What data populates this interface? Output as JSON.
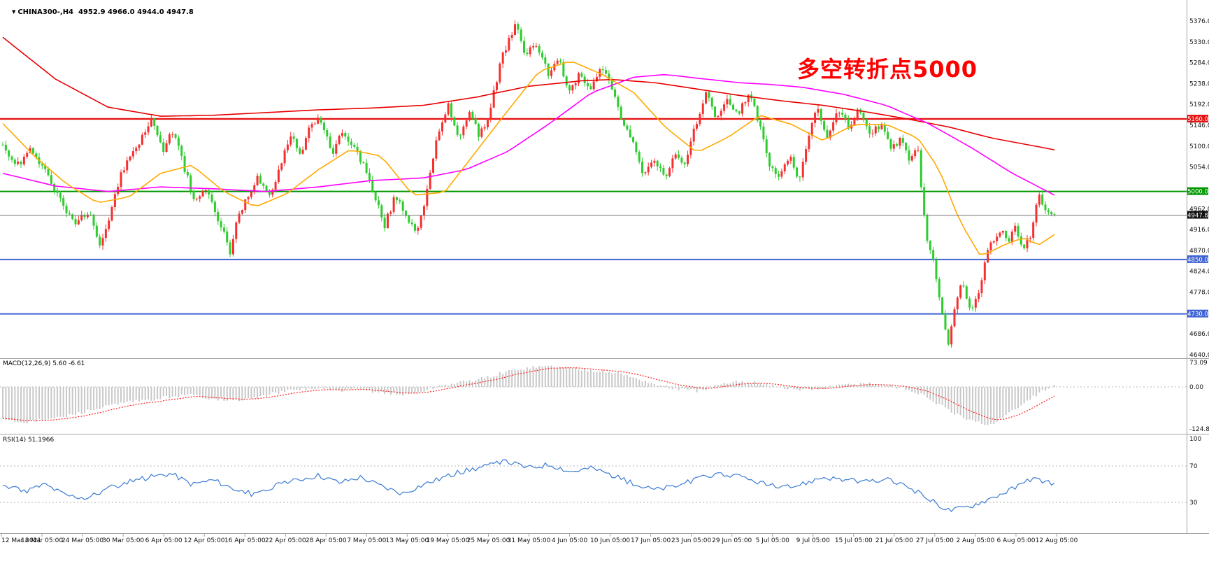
{
  "header": {
    "collapse_icon": "▼",
    "symbol_info": "CHINA300-,H4  4952.9 4966.0 4944.0 4947.8"
  },
  "annotation": {
    "text": "多空转折点5000",
    "color": "#ff0000"
  },
  "indicators": {
    "macd_label": "MACD(12,26,9) 5.60 -6.61",
    "rsi_label": "RSI(14) 51.1966"
  },
  "chart_data": {
    "type": "candlestick",
    "symbol": "CHINA300-",
    "timeframe": "H4",
    "title": "CHINA300-,H4",
    "ohlc_current": {
      "open": 4952.9,
      "high": 4966.0,
      "low": 4944.0,
      "close": 4947.8
    },
    "num_candles": 348,
    "ylim": [
      4640,
      5376
    ],
    "y_ticks": [
      5376.0,
      5330.0,
      5284.0,
      5238.0,
      5192.0,
      5146.0,
      5100.0,
      5054.0,
      4962.0,
      4916.0,
      4870.0,
      4824.0,
      4778.0,
      4686.0,
      4640.0
    ],
    "levels": [
      {
        "value": 5160.0,
        "label": "5160.0",
        "color": "#e81212",
        "width": 2.4
      },
      {
        "value": 5000.0,
        "label": "5000.0",
        "color": "#009600",
        "width": 2
      },
      {
        "value": 4850.0,
        "label": "4850.0",
        "color": "#3f63d2",
        "width": 2
      },
      {
        "value": 4730.0,
        "label": "4730.0",
        "color": "#3f63d2",
        "width": 2
      }
    ],
    "current_price": {
      "value": 4947.8,
      "label": "4947.8",
      "line_color": "#777777",
      "badge_color": "#111111"
    },
    "x_ticks": [
      "12 Mar 2021",
      "18 Mar 05:00",
      "24 Mar 05:00",
      "30 Mar 05:00",
      "6 Apr 05:00",
      "12 Apr 05:00",
      "16 Apr 05:00",
      "22 Apr 05:00",
      "28 Apr 05:00",
      "7 May 05:00",
      "13 May 05:00",
      "19 May 05:00",
      "25 May 05:00",
      "31 May 05:00",
      "4 Jun 05:00",
      "10 Jun 05:00",
      "17 Jun 05:00",
      "23 Jun 05:00",
      "29 Jun 05:00",
      "5 Jul 05:00",
      "9 Jul 05:00",
      "15 Jul 05:00",
      "21 Jul 05:00",
      "27 Jul 05:00",
      "2 Aug 05:00",
      "6 Aug 05:00",
      "12 Aug 05:00"
    ],
    "price_path": [
      [
        0,
        5110
      ],
      [
        0.01,
        5070
      ],
      [
        0.02,
        5060
      ],
      [
        0.03,
        5095
      ],
      [
        0.045,
        5040
      ],
      [
        0.055,
        4990
      ],
      [
        0.07,
        4930
      ],
      [
        0.085,
        4960
      ],
      [
        0.095,
        4880
      ],
      [
        0.105,
        4950
      ],
      [
        0.115,
        5040
      ],
      [
        0.13,
        5100
      ],
      [
        0.145,
        5160
      ],
      [
        0.155,
        5090
      ],
      [
        0.165,
        5140
      ],
      [
        0.175,
        5050
      ],
      [
        0.185,
        4980
      ],
      [
        0.195,
        5005
      ],
      [
        0.205,
        4950
      ],
      [
        0.213,
        4905
      ],
      [
        0.219,
        4858
      ],
      [
        0.225,
        4940
      ],
      [
        0.235,
        4990
      ],
      [
        0.245,
        5035
      ],
      [
        0.255,
        4990
      ],
      [
        0.265,
        5050
      ],
      [
        0.275,
        5125
      ],
      [
        0.285,
        5085
      ],
      [
        0.295,
        5145
      ],
      [
        0.305,
        5160
      ],
      [
        0.315,
        5080
      ],
      [
        0.325,
        5135
      ],
      [
        0.335,
        5100
      ],
      [
        0.345,
        5060
      ],
      [
        0.355,
        4990
      ],
      [
        0.365,
        4925
      ],
      [
        0.375,
        4990
      ],
      [
        0.385,
        4950
      ],
      [
        0.395,
        4910
      ],
      [
        0.405,
        5000
      ],
      [
        0.415,
        5120
      ],
      [
        0.425,
        5190
      ],
      [
        0.435,
        5120
      ],
      [
        0.445,
        5175
      ],
      [
        0.455,
        5120
      ],
      [
        0.465,
        5180
      ],
      [
        0.475,
        5290
      ],
      [
        0.483,
        5335
      ],
      [
        0.49,
        5370
      ],
      [
        0.497,
        5300
      ],
      [
        0.508,
        5330
      ],
      [
        0.52,
        5260
      ],
      [
        0.53,
        5290
      ],
      [
        0.54,
        5220
      ],
      [
        0.55,
        5258
      ],
      [
        0.56,
        5228
      ],
      [
        0.57,
        5280
      ],
      [
        0.58,
        5230
      ],
      [
        0.59,
        5160
      ],
      [
        0.6,
        5105
      ],
      [
        0.61,
        5040
      ],
      [
        0.62,
        5072
      ],
      [
        0.63,
        5030
      ],
      [
        0.64,
        5080
      ],
      [
        0.65,
        5052
      ],
      [
        0.66,
        5150
      ],
      [
        0.67,
        5220
      ],
      [
        0.68,
        5160
      ],
      [
        0.69,
        5200
      ],
      [
        0.7,
        5172
      ],
      [
        0.71,
        5218
      ],
      [
        0.72,
        5150
      ],
      [
        0.73,
        5060
      ],
      [
        0.74,
        5032
      ],
      [
        0.75,
        5080
      ],
      [
        0.757,
        5022
      ],
      [
        0.765,
        5100
      ],
      [
        0.775,
        5185
      ],
      [
        0.785,
        5120
      ],
      [
        0.795,
        5178
      ],
      [
        0.805,
        5140
      ],
      [
        0.815,
        5188
      ],
      [
        0.825,
        5120
      ],
      [
        0.835,
        5150
      ],
      [
        0.845,
        5090
      ],
      [
        0.855,
        5122
      ],
      [
        0.862,
        5062
      ],
      [
        0.87,
        5100
      ],
      [
        0.878,
        4905
      ],
      [
        0.885,
        4845
      ],
      [
        0.893,
        4745
      ],
      [
        0.899,
        4662
      ],
      [
        0.905,
        4745
      ],
      [
        0.912,
        4805
      ],
      [
        0.92,
        4732
      ],
      [
        0.928,
        4772
      ],
      [
        0.935,
        4862
      ],
      [
        0.942,
        4892
      ],
      [
        0.95,
        4920
      ],
      [
        0.957,
        4888
      ],
      [
        0.963,
        4922
      ],
      [
        0.97,
        4872
      ],
      [
        0.977,
        4902
      ],
      [
        0.985,
        4992
      ],
      [
        0.992,
        4960
      ],
      [
        1,
        4948
      ]
    ],
    "ma_slow_path": [
      [
        0,
        5340
      ],
      [
        0.05,
        5248
      ],
      [
        0.1,
        5186
      ],
      [
        0.15,
        5166
      ],
      [
        0.2,
        5168
      ],
      [
        0.25,
        5174
      ],
      [
        0.3,
        5180
      ],
      [
        0.35,
        5184
      ],
      [
        0.4,
        5190
      ],
      [
        0.45,
        5208
      ],
      [
        0.5,
        5232
      ],
      [
        0.55,
        5244
      ],
      [
        0.58,
        5247
      ],
      [
        0.62,
        5240
      ],
      [
        0.66,
        5226
      ],
      [
        0.7,
        5212
      ],
      [
        0.74,
        5200
      ],
      [
        0.78,
        5190
      ],
      [
        0.82,
        5176
      ],
      [
        0.86,
        5160
      ],
      [
        0.9,
        5142
      ],
      [
        0.94,
        5118
      ],
      [
        1,
        5092
      ]
    ],
    "ma_mid_path": [
      [
        0,
        5040
      ],
      [
        0.05,
        5012
      ],
      [
        0.1,
        5000
      ],
      [
        0.15,
        5010
      ],
      [
        0.2,
        5006
      ],
      [
        0.25,
        5000
      ],
      [
        0.3,
        5010
      ],
      [
        0.35,
        5024
      ],
      [
        0.4,
        5030
      ],
      [
        0.44,
        5048
      ],
      [
        0.48,
        5088
      ],
      [
        0.52,
        5150
      ],
      [
        0.56,
        5218
      ],
      [
        0.6,
        5252
      ],
      [
        0.63,
        5258
      ],
      [
        0.66,
        5250
      ],
      [
        0.7,
        5240
      ],
      [
        0.73,
        5236
      ],
      [
        0.76,
        5230
      ],
      [
        0.8,
        5214
      ],
      [
        0.84,
        5190
      ],
      [
        0.88,
        5150
      ],
      [
        0.92,
        5098
      ],
      [
        0.96,
        5040
      ],
      [
        1,
        4992
      ]
    ],
    "ma_fast_path": [
      [
        0,
        5150
      ],
      [
        0.03,
        5078
      ],
      [
        0.06,
        5018
      ],
      [
        0.09,
        4975
      ],
      [
        0.12,
        4988
      ],
      [
        0.15,
        5040
      ],
      [
        0.18,
        5058
      ],
      [
        0.21,
        5000
      ],
      [
        0.24,
        4966
      ],
      [
        0.27,
        4995
      ],
      [
        0.3,
        5048
      ],
      [
        0.33,
        5092
      ],
      [
        0.36,
        5078
      ],
      [
        0.39,
        4992
      ],
      [
        0.42,
        4998
      ],
      [
        0.45,
        5088
      ],
      [
        0.48,
        5178
      ],
      [
        0.51,
        5265
      ],
      [
        0.54,
        5288
      ],
      [
        0.57,
        5258
      ],
      [
        0.6,
        5218
      ],
      [
        0.63,
        5142
      ],
      [
        0.66,
        5086
      ],
      [
        0.69,
        5120
      ],
      [
        0.72,
        5168
      ],
      [
        0.75,
        5148
      ],
      [
        0.78,
        5112
      ],
      [
        0.81,
        5148
      ],
      [
        0.84,
        5148
      ],
      [
        0.87,
        5118
      ],
      [
        0.89,
        5050
      ],
      [
        0.91,
        4935
      ],
      [
        0.93,
        4856
      ],
      [
        0.95,
        4880
      ],
      [
        0.97,
        4898
      ],
      [
        0.985,
        4882
      ],
      [
        1,
        4905
      ]
    ],
    "macd": {
      "params": "12,26,9",
      "current_macd": 5.6,
      "current_signal": -6.61,
      "axis_values": [
        73.09,
        0.0,
        -124.81
      ],
      "axis_labels": [
        "73.09",
        "0.00",
        "-124.81"
      ],
      "path": [
        [
          0,
          -95
        ],
        [
          0.02,
          -105
        ],
        [
          0.04,
          -98
        ],
        [
          0.06,
          -88
        ],
        [
          0.08,
          -72
        ],
        [
          0.1,
          -58
        ],
        [
          0.12,
          -45
        ],
        [
          0.14,
          -40
        ],
        [
          0.16,
          -28
        ],
        [
          0.18,
          -24
        ],
        [
          0.2,
          -34
        ],
        [
          0.22,
          -40
        ],
        [
          0.24,
          -33
        ],
        [
          0.26,
          -18
        ],
        [
          0.28,
          -8
        ],
        [
          0.3,
          -4
        ],
        [
          0.32,
          -12
        ],
        [
          0.34,
          -8
        ],
        [
          0.36,
          -16
        ],
        [
          0.38,
          -24
        ],
        [
          0.4,
          -12
        ],
        [
          0.42,
          6
        ],
        [
          0.44,
          16
        ],
        [
          0.46,
          28
        ],
        [
          0.48,
          46
        ],
        [
          0.5,
          58
        ],
        [
          0.52,
          62
        ],
        [
          0.54,
          56
        ],
        [
          0.56,
          50
        ],
        [
          0.58,
          44
        ],
        [
          0.6,
          28
        ],
        [
          0.62,
          8
        ],
        [
          0.64,
          -6
        ],
        [
          0.66,
          -12
        ],
        [
          0.68,
          4
        ],
        [
          0.7,
          16
        ],
        [
          0.72,
          14
        ],
        [
          0.74,
          -2
        ],
        [
          0.76,
          -10
        ],
        [
          0.78,
          -4
        ],
        [
          0.8,
          6
        ],
        [
          0.82,
          12
        ],
        [
          0.84,
          4
        ],
        [
          0.86,
          -6
        ],
        [
          0.88,
          -32
        ],
        [
          0.9,
          -72
        ],
        [
          0.92,
          -102
        ],
        [
          0.94,
          -112
        ],
        [
          0.96,
          -72
        ],
        [
          0.98,
          -28
        ],
        [
          1,
          5.6
        ]
      ]
    },
    "rsi": {
      "period": 14,
      "current": 51.1966,
      "axis_values": [
        100,
        70,
        30
      ],
      "axis_labels": [
        "100",
        "70",
        "30"
      ],
      "level_lines": [
        70,
        30
      ],
      "path": [
        [
          0,
          48
        ],
        [
          0.02,
          42
        ],
        [
          0.04,
          50
        ],
        [
          0.06,
          38
        ],
        [
          0.08,
          35
        ],
        [
          0.1,
          45
        ],
        [
          0.12,
          52
        ],
        [
          0.14,
          58
        ],
        [
          0.16,
          62
        ],
        [
          0.18,
          50
        ],
        [
          0.2,
          55
        ],
        [
          0.22,
          45
        ],
        [
          0.24,
          38
        ],
        [
          0.26,
          48
        ],
        [
          0.28,
          55
        ],
        [
          0.3,
          60
        ],
        [
          0.32,
          52
        ],
        [
          0.34,
          58
        ],
        [
          0.36,
          48
        ],
        [
          0.38,
          40
        ],
        [
          0.4,
          50
        ],
        [
          0.42,
          58
        ],
        [
          0.44,
          65
        ],
        [
          0.46,
          70
        ],
        [
          0.48,
          75
        ],
        [
          0.5,
          68
        ],
        [
          0.52,
          72
        ],
        [
          0.54,
          64
        ],
        [
          0.56,
          68
        ],
        [
          0.58,
          60
        ],
        [
          0.6,
          50
        ],
        [
          0.62,
          44
        ],
        [
          0.64,
          48
        ],
        [
          0.66,
          55
        ],
        [
          0.68,
          62
        ],
        [
          0.7,
          58
        ],
        [
          0.72,
          52
        ],
        [
          0.74,
          45
        ],
        [
          0.76,
          50
        ],
        [
          0.78,
          58
        ],
        [
          0.8,
          55
        ],
        [
          0.82,
          52
        ],
        [
          0.84,
          55
        ],
        [
          0.86,
          48
        ],
        [
          0.88,
          34
        ],
        [
          0.9,
          21
        ],
        [
          0.92,
          26
        ],
        [
          0.94,
          35
        ],
        [
          0.96,
          45
        ],
        [
          0.98,
          56
        ],
        [
          1,
          51.2
        ]
      ]
    },
    "colors": {
      "up": "#f62f2f",
      "down": "#2ecc2e",
      "ma_slow": "#e80000",
      "ma_mid": "#ff00ff",
      "ma_fast": "#ffaa00",
      "macd_hist": "#c8c8c8",
      "macd_signal": "#ff2020",
      "rsi_line": "#3b7bd4",
      "grid_dotted": "#b5b5b5",
      "separator": "#a3a3a3",
      "axis_text": "#111111"
    }
  }
}
